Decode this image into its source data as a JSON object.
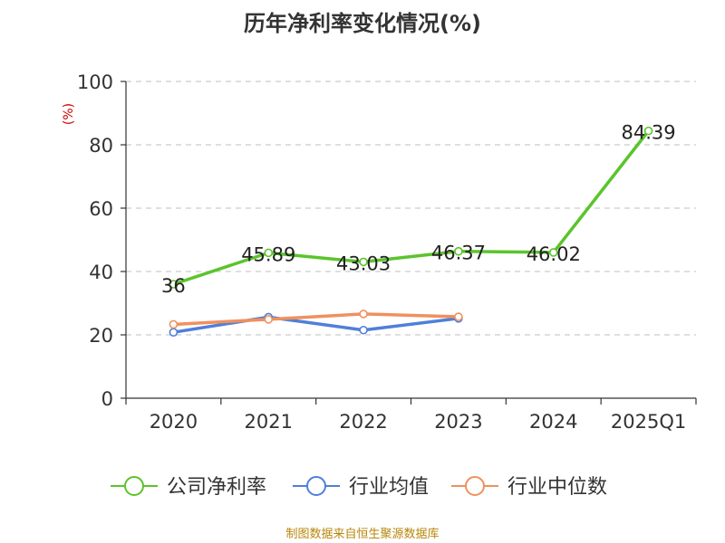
{
  "chart_data": {
    "type": "line",
    "title": "历年净利率变化情况(%)",
    "ylabel": "(%)",
    "xlabel": "",
    "categories": [
      "2020",
      "2021",
      "2022",
      "2023",
      "2024",
      "2025Q1"
    ],
    "ylim": [
      0,
      100
    ],
    "yticks": [
      0,
      20,
      40,
      60,
      80,
      100
    ],
    "grid": true,
    "legend_position": "bottom",
    "series": [
      {
        "name": "公司净利率",
        "color": "#5bc42c",
        "values": [
          36,
          45.89,
          43.03,
          46.37,
          46.02,
          84.39
        ],
        "labels": [
          "36",
          "45.89",
          "43.03",
          "46.37",
          "46.02",
          "84.39"
        ]
      },
      {
        "name": "行业均值",
        "color": "#4f7fd9",
        "values": [
          20.8,
          25.6,
          21.5,
          25.2,
          null,
          null
        ]
      },
      {
        "name": "行业中位数",
        "color": "#f0905e",
        "values": [
          23.3,
          24.9,
          26.6,
          25.7,
          null,
          null
        ]
      }
    ]
  },
  "source": {
    "text": "制图数据来自恒生聚源数据库",
    "color": "#b8860b"
  },
  "colors": {
    "axis": "#333333",
    "grid": "#cccccc",
    "ylabel": "#cc0000"
  }
}
